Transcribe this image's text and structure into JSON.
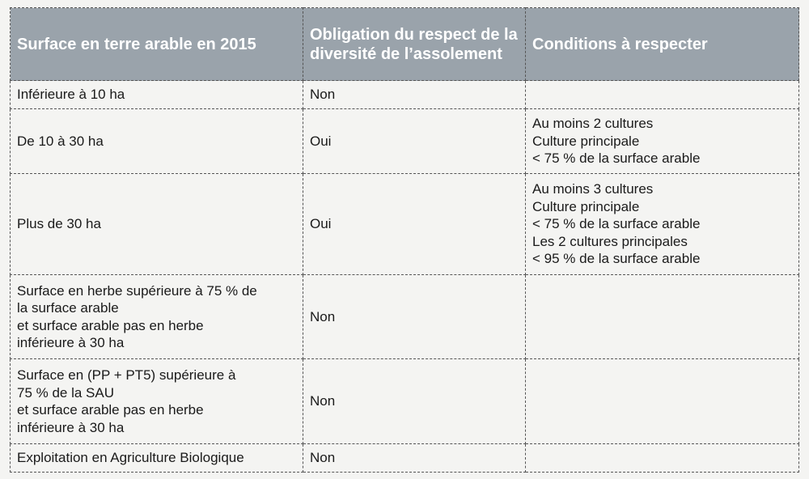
{
  "table": {
    "headers": [
      "Surface en terre arable en 2015",
      "Obligation du respect de la diversité de l’assolement",
      "Conditions à respecter"
    ],
    "rows": [
      {
        "surface": [
          "Inférieure à 10 ha"
        ],
        "obligation": "Non",
        "conditions": []
      },
      {
        "surface": [
          "De 10 à 30 ha"
        ],
        "obligation": "Oui",
        "conditions": [
          "Au moins 2 cultures",
          "Culture principale",
          "< 75 % de la surface arable"
        ]
      },
      {
        "surface": [
          "Plus de 30 ha"
        ],
        "obligation": "Oui",
        "conditions": [
          "Au moins 3 cultures",
          "Culture principale",
          "< 75 % de la surface arable",
          "Les 2 cultures principales",
          "< 95 % de la surface arable"
        ]
      },
      {
        "surface": [
          "Surface en herbe supérieure à 75 % de",
          "la surface arable",
          "et surface arable pas en herbe",
          "inférieure à 30 ha"
        ],
        "obligation": "Non",
        "conditions": []
      },
      {
        "surface": [
          "Surface en (PP + PT5) supérieure à",
          "75 % de la SAU",
          "et surface arable pas en herbe",
          "inférieure à 30 ha"
        ],
        "obligation": "Non",
        "conditions": []
      },
      {
        "surface": [
          "Exploitation en Agriculture Biologique"
        ],
        "obligation": "Non",
        "conditions": []
      }
    ]
  }
}
